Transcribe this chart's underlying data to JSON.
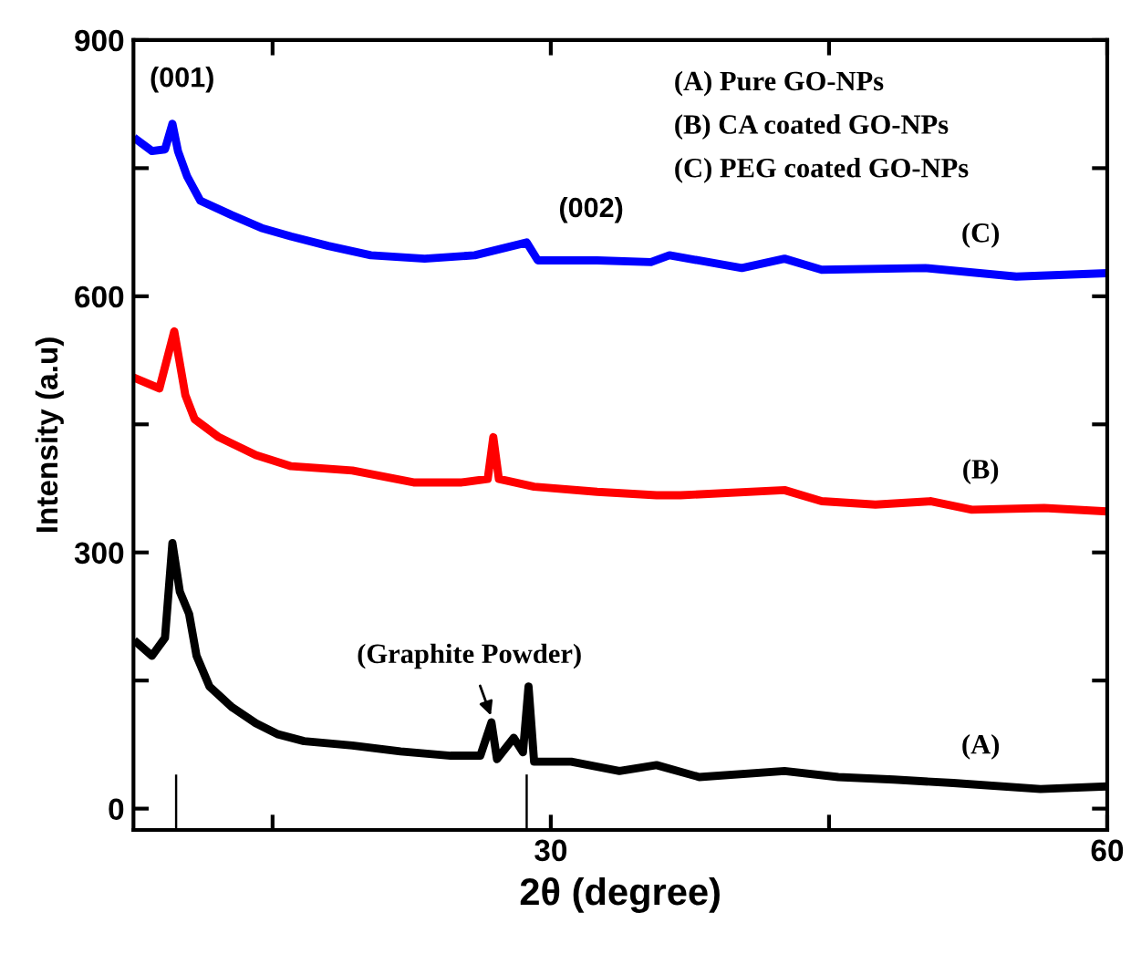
{
  "chart_data": {
    "type": "line",
    "xlabel": "2θ (degree)",
    "ylabel": "Intensity (a.u)",
    "xlim": [
      7.5,
      60
    ],
    "ylim": [
      -25,
      900
    ],
    "xticks": [
      {
        "value": 15,
        "label": null
      },
      30,
      {
        "value": 45,
        "label": null
      },
      60
    ],
    "yticks": [
      0,
      {
        "value": 150,
        "label": null
      },
      300,
      {
        "value": 450,
        "label": null
      },
      600,
      {
        "value": 750,
        "label": null
      },
      900
    ],
    "grid": false,
    "legend": false,
    "line_style": "solid",
    "marker": "none",
    "series": [
      {
        "name": "(A)",
        "color": "#000000",
        "x": [
          7.7,
          8.5,
          9.2,
          9.6,
          10.0,
          10.5,
          10.9,
          11.6,
          12.8,
          14.1,
          15.3,
          16.7,
          19.3,
          21.9,
          24.6,
          26.2,
          26.8,
          27.1,
          28.0,
          28.5,
          28.8,
          29.1,
          31.1,
          33.7,
          35.7,
          38.0,
          42.6,
          45.5,
          48.5,
          51.7,
          56.4,
          60
        ],
        "values": [
          194,
          179,
          200,
          311,
          254,
          228,
          179,
          143,
          119,
          100,
          87,
          79,
          74,
          67,
          62,
          62,
          101,
          58,
          83,
          66,
          143,
          55,
          55,
          44,
          51,
          37,
          44,
          37,
          34,
          30,
          23,
          26
        ]
      },
      {
        "name": "(B)",
        "color": "#ff0000",
        "x": [
          7.7,
          8.9,
          9.7,
          10.3,
          10.8,
          12.1,
          14.1,
          16.0,
          19.3,
          22.6,
          25.2,
          26.6,
          26.9,
          27.2,
          29.1,
          32.5,
          35.7,
          37.0,
          42.6,
          44.6,
          47.5,
          50.5,
          52.7,
          56.6,
          60
        ],
        "values": [
          503,
          492,
          559,
          484,
          456,
          435,
          414,
          401,
          396,
          382,
          382,
          386,
          435,
          386,
          377,
          371,
          367,
          367,
          373,
          360,
          356,
          360,
          350,
          352,
          348
        ]
      },
      {
        "name": "(C)",
        "color": "#0000ff",
        "x": [
          7.7,
          8.5,
          9.2,
          9.6,
          9.9,
          10.4,
          11.1,
          12.8,
          14.4,
          16.0,
          18.0,
          20.3,
          23.2,
          25.9,
          28.7,
          29.3,
          32.5,
          35.4,
          36.4,
          40.3,
          42.6,
          44.6,
          50.2,
          55.1,
          60
        ],
        "values": [
          783,
          770,
          772,
          802,
          770,
          740,
          712,
          695,
          680,
          670,
          659,
          648,
          644,
          648,
          663,
          642,
          642,
          640,
          648,
          633,
          644,
          631,
          633,
          623,
          627
        ]
      },
      {
        "type": "bar",
        "color": "#000000",
        "x": [
          9.8,
          28.7
        ],
        "base": [
          -25,
          -25
        ],
        "values": [
          65,
          65
        ]
      }
    ],
    "annotations": [
      "(A) Pure GO-NPs",
      "(B) CA coated GO-NPs",
      "(C) PEG coated GO-NPs",
      "(001)",
      "(002)",
      "(Graphite Powder)"
    ]
  }
}
